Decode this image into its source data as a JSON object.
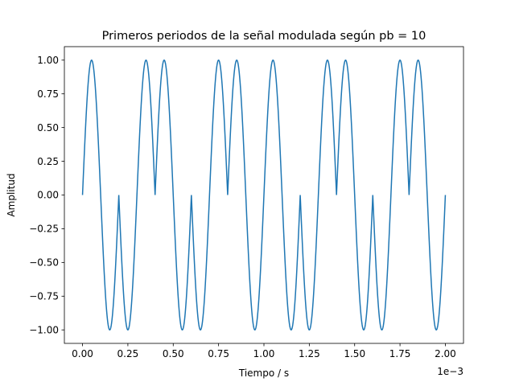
{
  "chart_data": {
    "type": "line",
    "title": "Primeros periodos de la señal modulada según pb = 10",
    "xlabel": "Tiempo / s",
    "ylabel": "Amplitud",
    "x_offset_label": "1e−3",
    "x_scale": 0.001,
    "xlim": [
      -0.0001,
      0.0021
    ],
    "ylim": [
      -1.1,
      1.1
    ],
    "x_ticks": [
      0,
      0.00025,
      0.0005,
      0.00075,
      0.001,
      0.00125,
      0.0015,
      0.00175,
      0.002
    ],
    "x_tick_labels": [
      "0.00",
      "0.25",
      "0.50",
      "0.75",
      "1.00",
      "1.25",
      "1.50",
      "1.75",
      "2.00"
    ],
    "y_ticks": [
      -1.0,
      -0.75,
      -0.5,
      -0.25,
      0.0,
      0.25,
      0.5,
      0.75,
      1.0
    ],
    "y_tick_labels": [
      "−1.00",
      "−0.75",
      "−0.50",
      "−0.25",
      "0.00",
      "0.25",
      "0.50",
      "0.75",
      "1.00"
    ],
    "grid": false,
    "series": [
      {
        "color": "#1f77b4",
        "carrier_frequency_hz": 5000,
        "bit_period_s": 0.0002,
        "bits": [
          1,
          0,
          1,
          0,
          1,
          1,
          0,
          1,
          0,
          1
        ],
        "x_range": [
          0,
          0.002
        ],
        "samples": 2001
      }
    ]
  }
}
